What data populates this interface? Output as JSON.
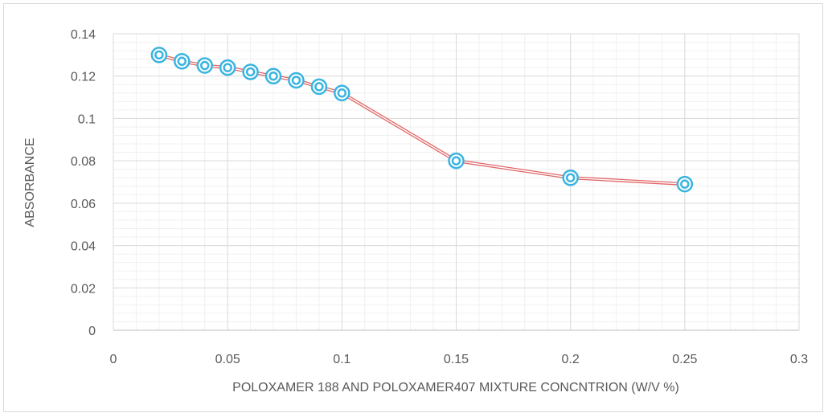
{
  "chart_data": {
    "type": "line",
    "title": "",
    "xlabel": "POLOXAMER 188 AND POLOXAMER407 MIXTURE CONCNTRION (W/V %)",
    "ylabel": "ABSORBANCE",
    "xlim": [
      0,
      0.3
    ],
    "ylim": [
      0,
      0.14
    ],
    "x_ticks": [
      "0",
      "0.05",
      "0.1",
      "0.15",
      "0.2",
      "0.25",
      "0.3"
    ],
    "y_ticks": [
      "0",
      "0.02",
      "0.04",
      "0.06",
      "0.08",
      "0.1",
      "0.12",
      "0.14"
    ],
    "grid": true,
    "minor_grid": true,
    "legend": "none",
    "series": [
      {
        "x": [
          0.02,
          0.03,
          0.04,
          0.05,
          0.06,
          0.07,
          0.08,
          0.09,
          0.1,
          0.15,
          0.2,
          0.25
        ],
        "y": [
          0.13,
          0.127,
          0.125,
          0.124,
          0.122,
          0.12,
          0.118,
          0.115,
          0.112,
          0.08,
          0.072,
          0.069
        ],
        "line_color": "#e06666",
        "marker_color": "#3ab4e0"
      }
    ]
  }
}
